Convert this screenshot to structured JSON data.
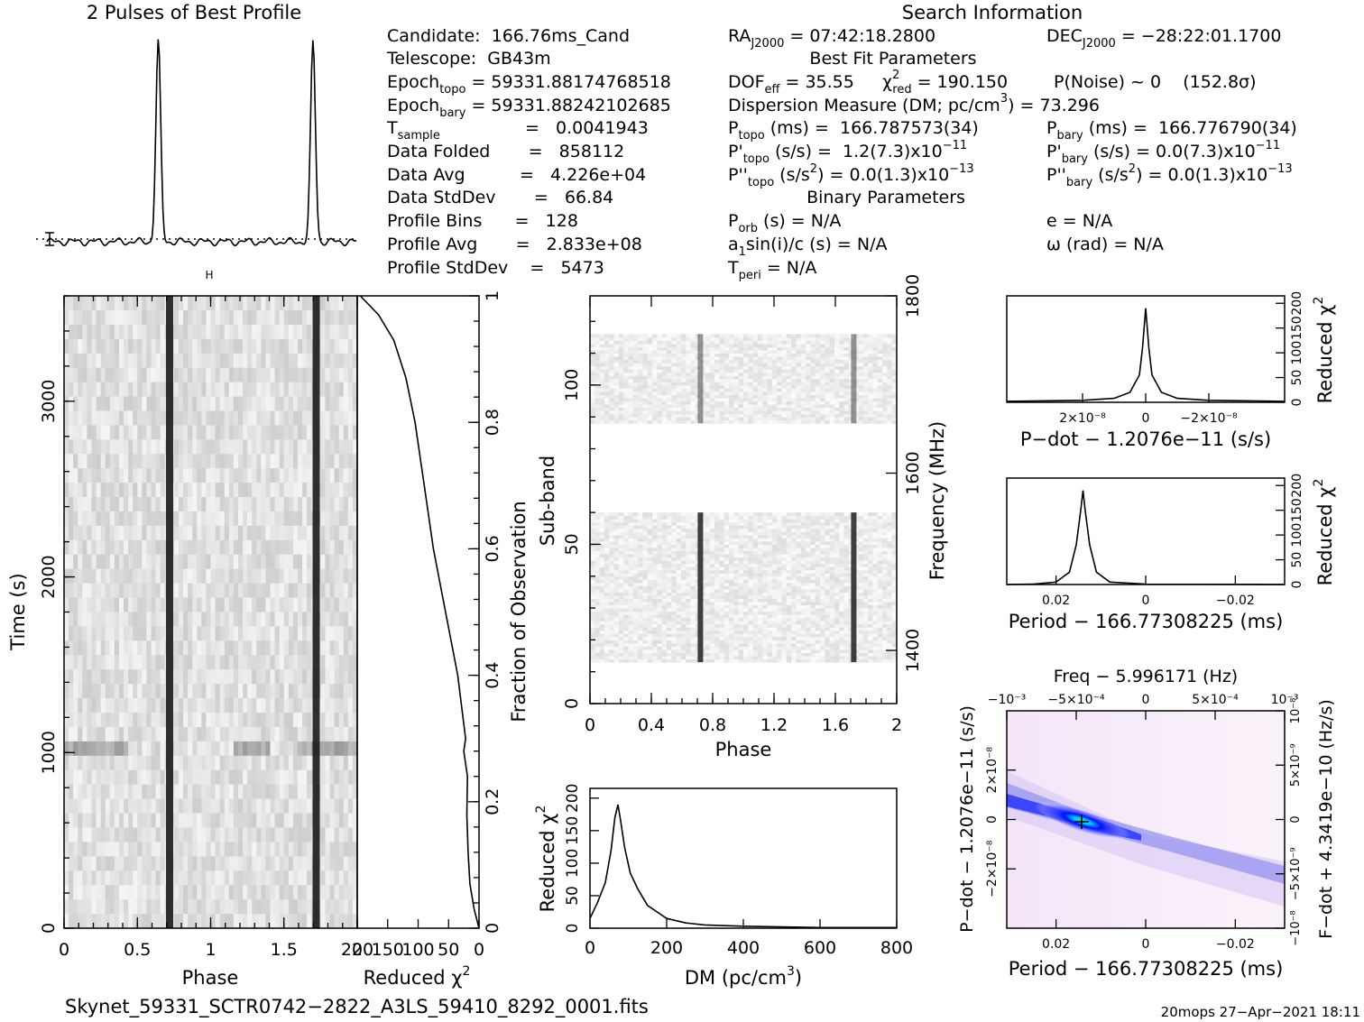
{
  "profile": {
    "title": "2 Pulses of Best Profile"
  },
  "search_info": {
    "title": "Search Information",
    "candidate": "Candidate:  166.76ms_Cand",
    "telescope": "Telescope:  GB43m",
    "epoch_topo_label": "Epoch",
    "epoch_topo_sub": "topo",
    "epoch_topo_value": "= 59331.88174768518",
    "epoch_bary_label": "Epoch",
    "epoch_bary_sub": "bary",
    "epoch_bary_value": "= 59331.88242102685",
    "tsample_label": "T",
    "tsample_sub": "sample",
    "tsample_value": "=   0.0041943",
    "data_folded": "Data Folded       =   858112",
    "data_avg": "Data Avg          =   4.226e+04",
    "data_stddev": "Data StdDev       =   66.84",
    "profile_bins": "Profile Bins      =   128",
    "profile_avg": "Profile Avg       =   2.833e+08",
    "profile_stddev": "Profile StdDev    =   5473",
    "ra_label": "RA",
    "ra_sub": "J2000",
    "ra_value": "= 07:42:18.2800",
    "dec_label": "DEC",
    "dec_sub": "J2000",
    "dec_value": "= −28:22:01.1700",
    "best_fit_title": "Best Fit Parameters",
    "dof_label": "DOF",
    "dof_sub": "eff",
    "dof_value": "= 35.55",
    "chi_label": "χ",
    "chi_sup": "2",
    "chi_sub": "red",
    "chi_value": "= 190.150",
    "pnoise": "P(Noise) ~ 0    (152.8σ)",
    "dm_line_a": "Dispersion Measure (DM; pc/cm",
    "dm_line_sup": "3",
    "dm_line_b": ") = 73.296",
    "ptopo_label": "P",
    "ptopo_sub": "topo",
    "ptopo_value": "(ms) =  166.787573(34)",
    "pbary_label": "P",
    "pbary_sub": "bary",
    "pbary_value": "(ms) =  166.776790(34)",
    "pdtopo_label": "P'",
    "pdtopo_sub": "topo",
    "pdtopo_value": "(s/s) =  1.2(7.3)x10",
    "pdtopo_sup": "−11",
    "pdbary_label": "P'",
    "pdbary_sub": "bary",
    "pdbary_value": "(s/s) = 0.0(7.3)x10",
    "pdbary_sup": "−11",
    "pddtopo_label": "P''",
    "pddtopo_sub": "topo",
    "pddtopo_value_a": "(s/s",
    "pddtopo_value_sup": "2",
    "pddtopo_value_b": ") = 0.0(1.3)x10",
    "pddtopo_sup": "−13",
    "pddbary_label": "P''",
    "pddbary_sub": "bary",
    "pddbary_value_a": "(s/s",
    "pddbary_value_sup": "2",
    "pddbary_value_b": ") = 0.0(1.3)x10",
    "pddbary_sup": "−13",
    "binary_title": "Binary Parameters",
    "porb_label": "P",
    "porb_sub": "orb",
    "porb_value": "(s) = N/A",
    "a1sin": "a",
    "a1sin_sub": "1",
    "a1sin_value": "sin(i)/c (s) = N/A",
    "tperi_label": "T",
    "tperi_sub": "peri",
    "tperi_value": "= N/A",
    "ecc": "e = N/A",
    "omega": "ω (rad) = N/A"
  },
  "footer": {
    "filename": "Skynet_59331_SCTR0742−2822_A3LS_59410_8292_0001.fits",
    "stamp": "20mops 27−Apr−2021 18:11"
  },
  "time_phase": {
    "xlabel": "Phase",
    "ylabel": "Time (s)",
    "xticks": [
      "0",
      "0.5",
      "1",
      "1.5",
      "2"
    ],
    "yticks": [
      "0",
      "1000",
      "2000",
      "3000"
    ]
  },
  "time_chi": {
    "xlabel_a": "Reduced ",
    "xlabel_chi": "χ",
    "xlabel_sup": "2",
    "xticks": [
      "200",
      "150",
      "100",
      "50",
      "0"
    ],
    "ylabel": "Fraction of Observation",
    "yticks": [
      "0",
      "0.2",
      "0.4",
      "0.6",
      "0.8",
      "1"
    ]
  },
  "subband": {
    "xlabel": "Phase",
    "ylabel": "Sub-band",
    "y2label": "Frequency (MHz)",
    "xticks": [
      "0",
      "0.4",
      "0.8",
      "1.2",
      "1.6",
      "2"
    ],
    "yticks": [
      "0",
      "50",
      "100"
    ],
    "y2ticks": [
      "1400",
      "1600",
      "1800"
    ]
  },
  "dm_plot": {
    "xlabel_a": "DM (pc/cm",
    "xlabel_sup": "3",
    "xlabel_b": ")",
    "ylabel_a": "Reduced ",
    "ylabel_chi": "χ",
    "ylabel_sup": "2",
    "xticks": [
      "0",
      "200",
      "400",
      "600",
      "800"
    ],
    "yticks": [
      "0",
      "50",
      "100",
      "150",
      "200"
    ]
  },
  "pdot_plot": {
    "xlabel": "P−dot − 1.2076e−11 (s/s)",
    "ylabel_a": "Reduced ",
    "ylabel_chi": "χ",
    "ylabel_sup": "2",
    "xticks": [
      "2×10⁻⁸",
      "0",
      "−2×10⁻⁸"
    ],
    "yticks": [
      "0",
      "50",
      "100",
      "150",
      "200"
    ]
  },
  "period_plot": {
    "xlabel": "Period − 166.77308225 (ms)",
    "ylabel_a": "Reduced ",
    "ylabel_chi": "χ",
    "ylabel_sup": "2",
    "xticks": [
      "0.02",
      "0",
      "−0.02"
    ],
    "yticks": [
      "0",
      "50",
      "100",
      "150",
      "200"
    ]
  },
  "ppdot_plot": {
    "top_label": "Freq − 5.996171 (Hz)",
    "xlabel": "Period − 166.77308225 (ms)",
    "ylabel": "P−dot − 1.2076e−11 (s/s)",
    "y2label": "F−dot + 4.3419e−10 (Hz/s)",
    "xticks": [
      "0.02",
      "0",
      "−0.02"
    ],
    "topticks": [
      "−10⁻³",
      "−5×10⁻⁴",
      "0",
      "5×10⁻⁴",
      "10⁻³"
    ],
    "yticks": [
      "2×10⁻⁸",
      "0",
      "−2×10⁻⁸"
    ],
    "y2ticks": [
      "−10⁻⁸",
      "−5×10⁻⁹",
      "0",
      "5×10⁻⁹",
      "10⁻⁸"
    ]
  },
  "chart_data": [
    {
      "type": "line",
      "name": "profile",
      "title": "2 Pulses of Best Profile",
      "x_phase": [
        0.0,
        0.55,
        0.66,
        0.7,
        0.72,
        0.74,
        0.78,
        0.9,
        1.55,
        1.66,
        1.7,
        1.72,
        1.74,
        1.78,
        2.0
      ],
      "y_rel": [
        0.0,
        0.01,
        0.05,
        0.6,
        1.0,
        0.6,
        0.05,
        0.0,
        0.01,
        0.05,
        0.6,
        1.0,
        0.6,
        0.05,
        0.0
      ]
    },
    {
      "type": "heatmap",
      "name": "time-vs-phase",
      "xlabel": "Phase",
      "ylabel": "Time (s)",
      "xlim": [
        0,
        2
      ],
      "ylim": [
        0,
        3600
      ],
      "pulse_phases": [
        0.72,
        1.72
      ],
      "bright_row_time_s": 1050
    },
    {
      "type": "line",
      "name": "cumulative-chi2",
      "xlim": [
        200,
        0
      ],
      "ylim": [
        0,
        1
      ],
      "fraction": [
        0.0,
        0.03,
        0.07,
        0.12,
        0.18,
        0.24,
        0.28,
        0.3,
        0.4,
        0.5,
        0.6,
        0.7,
        0.8,
        0.87,
        0.93,
        0.97,
        1.0
      ],
      "chi2": [
        0,
        8,
        15,
        18,
        20,
        19,
        25,
        22,
        35,
        55,
        75,
        90,
        105,
        120,
        140,
        165,
        195
      ]
    },
    {
      "type": "heatmap",
      "name": "subband-vs-phase",
      "xlabel": "Phase",
      "ylabel": "Sub-band",
      "xlim": [
        0,
        2
      ],
      "ylim": [
        0,
        128
      ],
      "freq_range_mhz": [
        1340,
        1800
      ],
      "pulse_phases": [
        0.72,
        1.72
      ],
      "masked_subbands": [
        [
          0,
          13
        ],
        [
          60,
          88
        ],
        [
          116,
          128
        ]
      ]
    },
    {
      "type": "line",
      "name": "dm-chi2",
      "xlabel": "DM (pc/cm³)",
      "ylabel": "Reduced χ²",
      "xlim": [
        0,
        800
      ],
      "ylim": [
        0,
        215
      ],
      "x": [
        0,
        20,
        40,
        55,
        65,
        73,
        80,
        90,
        105,
        125,
        150,
        200,
        250,
        300,
        400,
        500,
        600,
        700,
        800
      ],
      "y": [
        15,
        40,
        70,
        120,
        170,
        190,
        165,
        125,
        85,
        60,
        35,
        15,
        8,
        5,
        3,
        2,
        1,
        1,
        1
      ]
    },
    {
      "type": "line",
      "name": "pdot-chi2",
      "xlabel": "P−dot − 1.2076e−11 (s/s)",
      "ylabel": "Reduced χ²",
      "xlim": [
        4.4e-08,
        -4.4e-08
      ],
      "ylim": [
        0,
        215
      ],
      "x": [
        4.4e-08,
        2e-08,
        1e-08,
        5e-09,
        2e-09,
        1e-09,
        0,
        -1e-09,
        -2e-09,
        -5e-09,
        -1e-08,
        -2e-08,
        -4.4e-08
      ],
      "y": [
        2,
        4,
        8,
        20,
        55,
        110,
        190,
        110,
        55,
        20,
        8,
        4,
        2
      ]
    },
    {
      "type": "line",
      "name": "period-chi2",
      "xlabel": "Period − 166.77308225 (ms)",
      "ylabel": "Reduced χ²",
      "xlim": [
        0.031,
        -0.031
      ],
      "ylim": [
        0,
        215
      ],
      "x": [
        0.031,
        0.025,
        0.02,
        0.017,
        0.0155,
        0.0145,
        0.014,
        0.0135,
        0.0125,
        0.011,
        0.008,
        0.0,
        -0.031
      ],
      "y": [
        0,
        1,
        5,
        25,
        80,
        150,
        190,
        150,
        80,
        25,
        5,
        1,
        0
      ]
    },
    {
      "type": "heatmap",
      "name": "p-pdot-chi2",
      "xlabel": "Period − 166.77308225 (ms)",
      "ylabel": "P−dot − 1.2076e−11 (s/s)",
      "xlim": [
        0.031,
        -0.031
      ],
      "ylim": [
        4.4e-08,
        -4.4e-08
      ],
      "best_fit": [
        0.014,
        0.0
      ]
    }
  ]
}
